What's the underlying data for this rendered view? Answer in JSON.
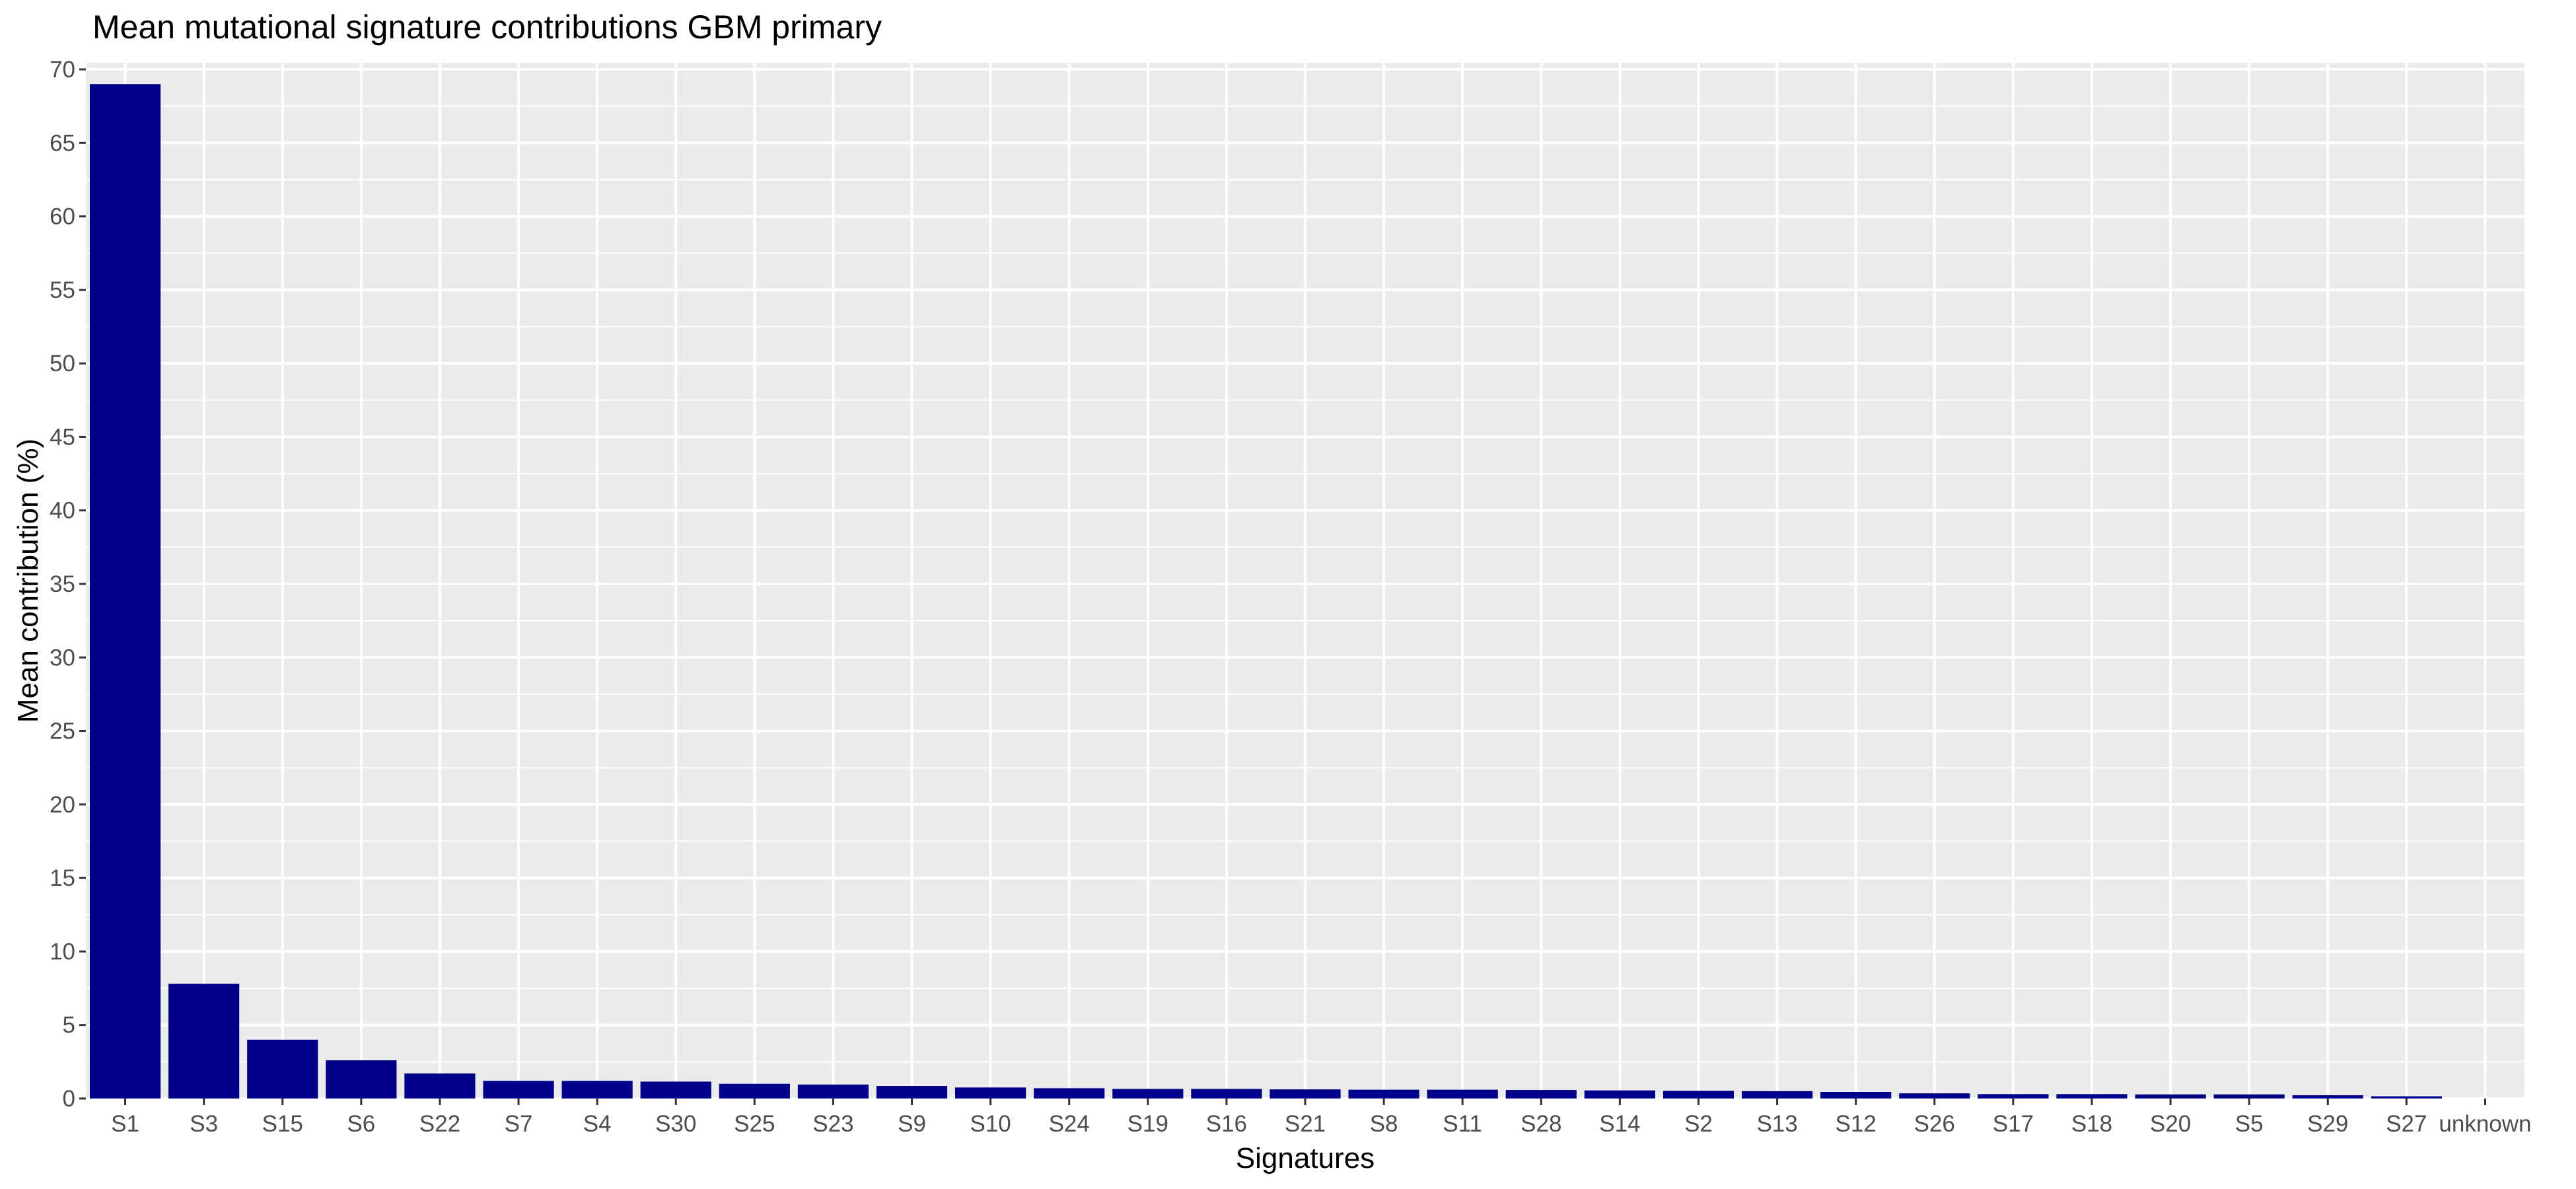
{
  "chart_data": {
    "type": "bar",
    "title": "Mean mutational signature contributions GBM primary",
    "xlabel": "Signatures",
    "ylabel": "Mean contribution (%)",
    "categories": [
      "S1",
      "S3",
      "S15",
      "S6",
      "S22",
      "S7",
      "S4",
      "S30",
      "S25",
      "S23",
      "S9",
      "S10",
      "S24",
      "S19",
      "S16",
      "S21",
      "S8",
      "S11",
      "S28",
      "S14",
      "S2",
      "S13",
      "S12",
      "S26",
      "S17",
      "S18",
      "S20",
      "S5",
      "S29",
      "S27",
      "unknown"
    ],
    "values": [
      69.0,
      7.8,
      4.0,
      2.6,
      1.7,
      1.2,
      1.2,
      1.15,
      1.0,
      0.95,
      0.85,
      0.75,
      0.7,
      0.65,
      0.65,
      0.62,
      0.6,
      0.6,
      0.58,
      0.55,
      0.52,
      0.5,
      0.45,
      0.35,
      0.3,
      0.3,
      0.28,
      0.28,
      0.22,
      0.15,
      0.0
    ],
    "ylim": [
      0,
      70
    ],
    "yticks": [
      0,
      5,
      10,
      15,
      20,
      25,
      30,
      35,
      40,
      45,
      50,
      55,
      60,
      65,
      70
    ],
    "grid": true,
    "colors": {
      "bar": "#00008B",
      "panel": "#EBEBEB",
      "grid": "#FFFFFF"
    }
  }
}
